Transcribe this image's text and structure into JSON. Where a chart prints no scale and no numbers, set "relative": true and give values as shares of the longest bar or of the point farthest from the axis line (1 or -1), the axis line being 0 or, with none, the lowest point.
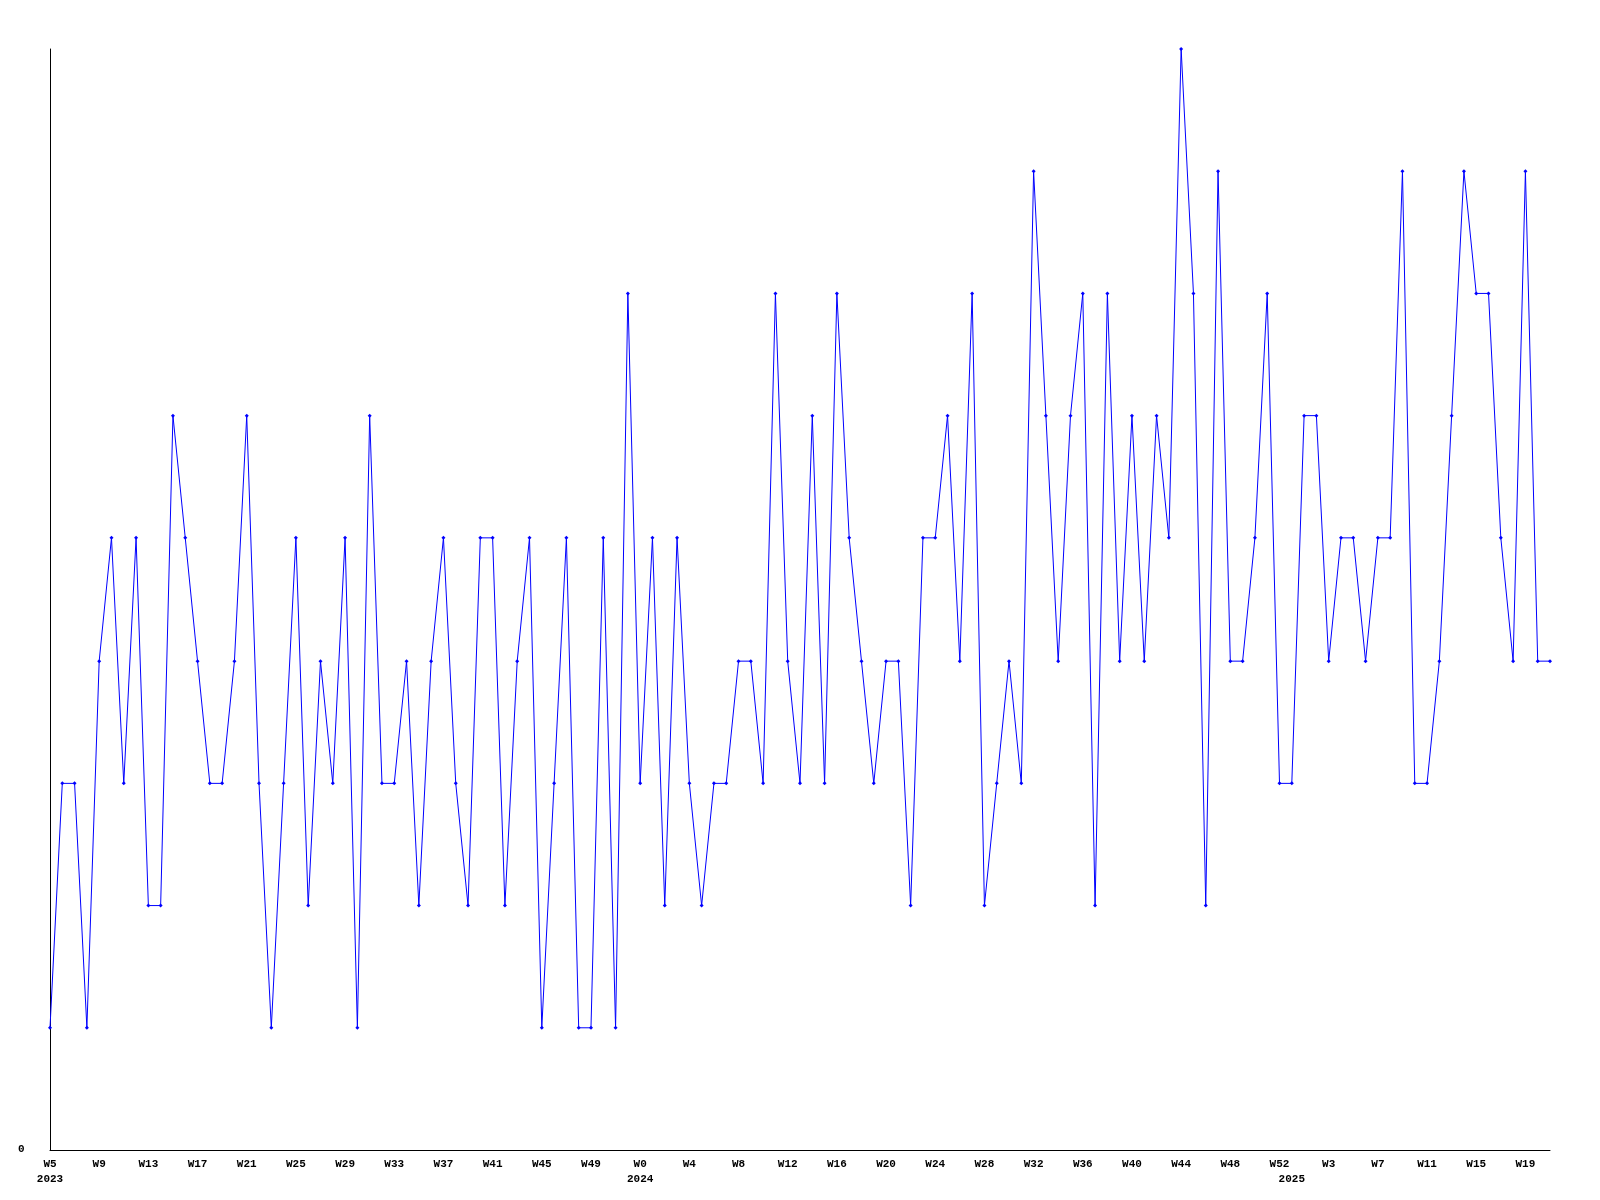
{
  "chart_data": {
    "type": "line",
    "relative": true,
    "annotations": [
      "0"
    ],
    "marker": "diamond",
    "line_style": "solid",
    "categories": [
      "W5\n2023",
      null,
      null,
      null,
      "W9",
      null,
      null,
      null,
      "W13",
      null,
      null,
      null,
      "W17",
      null,
      null,
      null,
      "W21",
      null,
      null,
      null,
      "W25",
      null,
      null,
      null,
      "W29",
      null,
      null,
      null,
      "W33",
      null,
      null,
      null,
      "W37",
      null,
      null,
      null,
      "W41",
      null,
      null,
      null,
      "W45",
      null,
      null,
      null,
      "W49",
      null,
      null,
      null,
      "W0\n2024",
      null,
      null,
      null,
      "W4",
      null,
      null,
      null,
      "W8",
      null,
      null,
      null,
      "W12",
      null,
      null,
      null,
      "W16",
      null,
      null,
      null,
      "W20",
      null,
      null,
      null,
      "W24",
      null,
      null,
      null,
      "W28",
      null,
      null,
      null,
      "W32",
      null,
      null,
      null,
      "W36",
      null,
      null,
      null,
      "W40",
      null,
      null,
      null,
      "W44",
      null,
      null,
      null,
      "W48",
      null,
      null,
      null,
      "W52",
      "\n2025",
      null,
      null,
      "W3",
      null,
      null,
      null,
      "W7",
      null,
      null,
      null,
      "W11",
      null,
      null,
      null,
      "W15",
      null,
      null,
      null,
      "W19",
      null,
      null
    ],
    "series": [
      {
        "color": "#0000ff",
        "values": [
          0.111,
          0.333,
          0.333,
          0.111,
          0.444,
          0.556,
          0.333,
          0.556,
          0.222,
          0.222,
          0.667,
          0.556,
          0.444,
          0.333,
          0.333,
          0.444,
          0.667,
          0.333,
          0.111,
          0.333,
          0.556,
          0.222,
          0.444,
          0.333,
          0.556,
          0.111,
          0.667,
          0.333,
          0.333,
          0.444,
          0.222,
          0.444,
          0.556,
          0.333,
          0.222,
          0.556,
          0.556,
          0.222,
          0.444,
          0.556,
          0.111,
          0.333,
          0.556,
          0.111,
          0.111,
          0.556,
          0.111,
          0.778,
          0.333,
          0.556,
          0.222,
          0.556,
          0.333,
          0.222,
          0.333,
          0.333,
          0.444,
          0.444,
          0.333,
          0.778,
          0.444,
          0.333,
          0.667,
          0.333,
          0.778,
          0.556,
          0.444,
          0.333,
          0.444,
          0.444,
          0.222,
          0.556,
          0.556,
          0.667,
          0.444,
          0.778,
          0.222,
          0.333,
          0.444,
          0.333,
          0.889,
          0.667,
          0.444,
          0.667,
          0.778,
          0.222,
          0.778,
          0.444,
          0.667,
          0.444,
          0.667,
          0.556,
          1,
          0.778,
          0.222,
          0.889,
          0.444,
          0.444,
          0.556,
          0.778,
          0.333,
          0.333,
          0.667,
          0.667,
          0.444,
          0.556,
          0.556,
          0.444,
          0.556,
          0.556,
          0.889,
          0.333,
          0.333,
          0.444,
          0.667,
          0.889,
          0.778,
          0.778,
          0.556,
          0.444,
          0.889,
          0.444,
          0.444
        ]
      }
    ]
  }
}
